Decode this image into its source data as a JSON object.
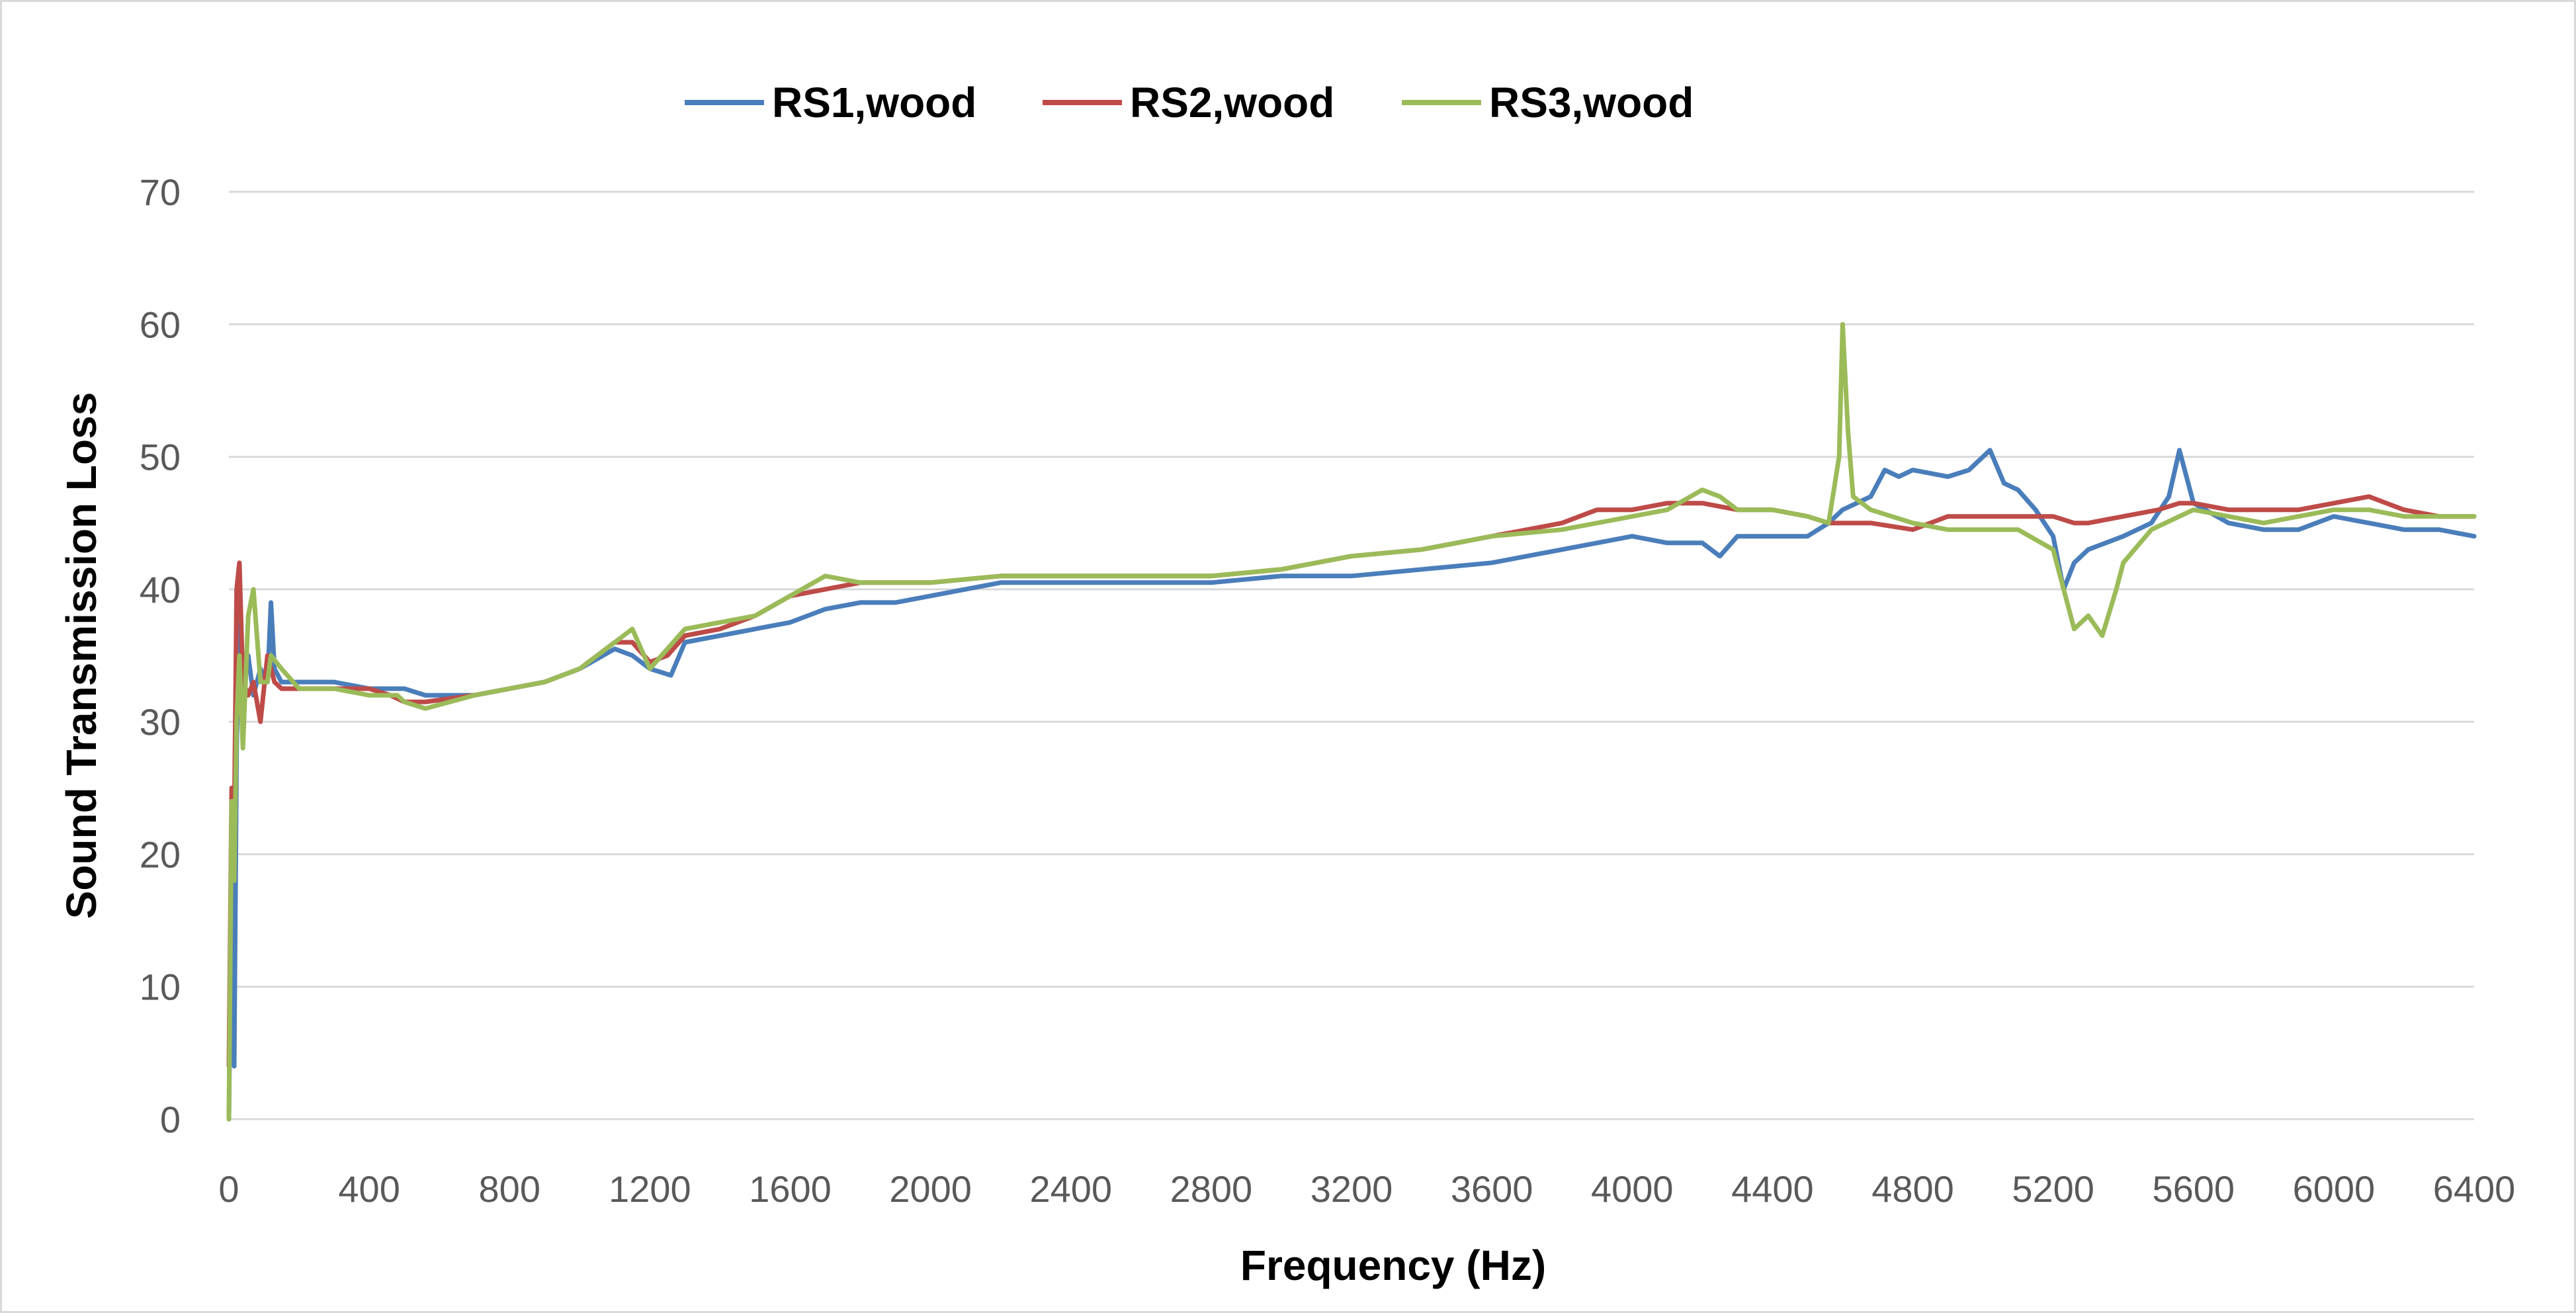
{
  "chart_data": {
    "type": "line",
    "title": "",
    "xlabel": "Frequency (Hz)",
    "ylabel": "Sound Transmission Loss",
    "xlim": [
      0,
      6400
    ],
    "ylim": [
      0,
      70
    ],
    "xticks": [
      0,
      400,
      800,
      1200,
      1600,
      2000,
      2400,
      2800,
      3200,
      3600,
      4000,
      4400,
      4800,
      5200,
      5600,
      6000,
      6400
    ],
    "yticks": [
      0,
      10,
      20,
      30,
      40,
      50,
      60,
      70
    ],
    "grid": "horizontal",
    "legend_position": "top",
    "series": [
      {
        "name": "RS1,wood",
        "color": "#4a7ebb",
        "points": [
          [
            0,
            0
          ],
          [
            8,
            20
          ],
          [
            15,
            4
          ],
          [
            22,
            28
          ],
          [
            30,
            38
          ],
          [
            40,
            33
          ],
          [
            55,
            35
          ],
          [
            70,
            32
          ],
          [
            90,
            34
          ],
          [
            110,
            33
          ],
          [
            120,
            39
          ],
          [
            130,
            34
          ],
          [
            150,
            33
          ],
          [
            200,
            33
          ],
          [
            250,
            33
          ],
          [
            300,
            33
          ],
          [
            400,
            32.5
          ],
          [
            500,
            32.5
          ],
          [
            560,
            32
          ],
          [
            700,
            32
          ],
          [
            800,
            32.5
          ],
          [
            900,
            33
          ],
          [
            1000,
            34
          ],
          [
            1100,
            35.5
          ],
          [
            1150,
            35
          ],
          [
            1200,
            34
          ],
          [
            1260,
            33.5
          ],
          [
            1300,
            36
          ],
          [
            1400,
            36.5
          ],
          [
            1500,
            37
          ],
          [
            1600,
            37.5
          ],
          [
            1700,
            38.5
          ],
          [
            1800,
            39
          ],
          [
            1900,
            39
          ],
          [
            2000,
            39.5
          ],
          [
            2200,
            40.5
          ],
          [
            2400,
            40.5
          ],
          [
            2600,
            40.5
          ],
          [
            2800,
            40.5
          ],
          [
            3000,
            41
          ],
          [
            3200,
            41
          ],
          [
            3400,
            41.5
          ],
          [
            3600,
            42
          ],
          [
            3800,
            43
          ],
          [
            3900,
            43.5
          ],
          [
            4000,
            44
          ],
          [
            4100,
            43.5
          ],
          [
            4200,
            43.5
          ],
          [
            4250,
            42.5
          ],
          [
            4300,
            44
          ],
          [
            4400,
            44
          ],
          [
            4500,
            44
          ],
          [
            4560,
            45
          ],
          [
            4600,
            46
          ],
          [
            4680,
            47
          ],
          [
            4720,
            49
          ],
          [
            4760,
            48.5
          ],
          [
            4800,
            49
          ],
          [
            4900,
            48.5
          ],
          [
            4960,
            49
          ],
          [
            5020,
            50.5
          ],
          [
            5060,
            48
          ],
          [
            5100,
            47.5
          ],
          [
            5150,
            46
          ],
          [
            5200,
            44
          ],
          [
            5230,
            40
          ],
          [
            5260,
            42
          ],
          [
            5300,
            43
          ],
          [
            5400,
            44
          ],
          [
            5480,
            45
          ],
          [
            5530,
            47
          ],
          [
            5560,
            50.5
          ],
          [
            5600,
            46.5
          ],
          [
            5700,
            45
          ],
          [
            5800,
            44.5
          ],
          [
            5900,
            44.5
          ],
          [
            6000,
            45.5
          ],
          [
            6100,
            45
          ],
          [
            6200,
            44.5
          ],
          [
            6300,
            44.5
          ],
          [
            6400,
            44
          ]
        ]
      },
      {
        "name": "RS2,wood",
        "color": "#be4b48",
        "points": [
          [
            0,
            4
          ],
          [
            8,
            25
          ],
          [
            15,
            22
          ],
          [
            22,
            40
          ],
          [
            30,
            42
          ],
          [
            40,
            33
          ],
          [
            55,
            32
          ],
          [
            70,
            33
          ],
          [
            90,
            30
          ],
          [
            110,
            35
          ],
          [
            130,
            33
          ],
          [
            150,
            32.5
          ],
          [
            200,
            32.5
          ],
          [
            300,
            32.5
          ],
          [
            400,
            32.5
          ],
          [
            460,
            32
          ],
          [
            500,
            31.5
          ],
          [
            560,
            31.5
          ],
          [
            700,
            32
          ],
          [
            800,
            32.5
          ],
          [
            900,
            33
          ],
          [
            1000,
            34
          ],
          [
            1100,
            36
          ],
          [
            1150,
            36
          ],
          [
            1200,
            34.5
          ],
          [
            1250,
            35
          ],
          [
            1300,
            36.5
          ],
          [
            1400,
            37
          ],
          [
            1500,
            38
          ],
          [
            1600,
            39.5
          ],
          [
            1700,
            40
          ],
          [
            1800,
            40.5
          ],
          [
            1900,
            40.5
          ],
          [
            2000,
            40.5
          ],
          [
            2200,
            41
          ],
          [
            2400,
            41
          ],
          [
            2600,
            41
          ],
          [
            2800,
            41
          ],
          [
            3000,
            41.5
          ],
          [
            3200,
            42.5
          ],
          [
            3400,
            43
          ],
          [
            3600,
            44
          ],
          [
            3800,
            45
          ],
          [
            3900,
            46
          ],
          [
            4000,
            46
          ],
          [
            4100,
            46.5
          ],
          [
            4200,
            46.5
          ],
          [
            4300,
            46
          ],
          [
            4400,
            46
          ],
          [
            4500,
            45.5
          ],
          [
            4560,
            45
          ],
          [
            4600,
            45
          ],
          [
            4680,
            45
          ],
          [
            4800,
            44.5
          ],
          [
            4900,
            45.5
          ],
          [
            5000,
            45.5
          ],
          [
            5100,
            45.5
          ],
          [
            5200,
            45.5
          ],
          [
            5260,
            45
          ],
          [
            5300,
            45
          ],
          [
            5400,
            45.5
          ],
          [
            5500,
            46
          ],
          [
            5560,
            46.5
          ],
          [
            5600,
            46.5
          ],
          [
            5700,
            46
          ],
          [
            5800,
            46
          ],
          [
            5900,
            46
          ],
          [
            6000,
            46.5
          ],
          [
            6100,
            47
          ],
          [
            6200,
            46
          ],
          [
            6300,
            45.5
          ],
          [
            6400,
            45.5
          ]
        ]
      },
      {
        "name": "RS3,wood",
        "color": "#9bbb59",
        "points": [
          [
            0,
            0
          ],
          [
            8,
            24
          ],
          [
            15,
            18
          ],
          [
            22,
            30
          ],
          [
            30,
            35
          ],
          [
            40,
            28
          ],
          [
            55,
            38
          ],
          [
            70,
            40
          ],
          [
            90,
            33
          ],
          [
            110,
            33
          ],
          [
            120,
            35
          ],
          [
            150,
            34
          ],
          [
            200,
            32.5
          ],
          [
            300,
            32.5
          ],
          [
            400,
            32
          ],
          [
            480,
            32
          ],
          [
            500,
            31.5
          ],
          [
            560,
            31
          ],
          [
            700,
            32
          ],
          [
            800,
            32.5
          ],
          [
            900,
            33
          ],
          [
            1000,
            34
          ],
          [
            1100,
            36
          ],
          [
            1150,
            37
          ],
          [
            1200,
            34
          ],
          [
            1250,
            35.5
          ],
          [
            1300,
            37
          ],
          [
            1400,
            37.5
          ],
          [
            1500,
            38
          ],
          [
            1600,
            39.5
          ],
          [
            1700,
            41
          ],
          [
            1800,
            40.5
          ],
          [
            1900,
            40.5
          ],
          [
            2000,
            40.5
          ],
          [
            2200,
            41
          ],
          [
            2400,
            41
          ],
          [
            2600,
            41
          ],
          [
            2800,
            41
          ],
          [
            3000,
            41.5
          ],
          [
            3200,
            42.5
          ],
          [
            3400,
            43
          ],
          [
            3600,
            44
          ],
          [
            3800,
            44.5
          ],
          [
            3900,
            45
          ],
          [
            4000,
            45.5
          ],
          [
            4100,
            46
          ],
          [
            4200,
            47.5
          ],
          [
            4250,
            47
          ],
          [
            4300,
            46
          ],
          [
            4400,
            46
          ],
          [
            4500,
            45.5
          ],
          [
            4560,
            45
          ],
          [
            4590,
            50
          ],
          [
            4600,
            60
          ],
          [
            4615,
            52
          ],
          [
            4630,
            47
          ],
          [
            4680,
            46
          ],
          [
            4800,
            45
          ],
          [
            4900,
            44.5
          ],
          [
            5000,
            44.5
          ],
          [
            5100,
            44.5
          ],
          [
            5200,
            43
          ],
          [
            5230,
            40
          ],
          [
            5260,
            37
          ],
          [
            5300,
            38
          ],
          [
            5340,
            36.5
          ],
          [
            5380,
            40
          ],
          [
            5400,
            42
          ],
          [
            5480,
            44.5
          ],
          [
            5560,
            45.5
          ],
          [
            5600,
            46
          ],
          [
            5700,
            45.5
          ],
          [
            5800,
            45
          ],
          [
            5900,
            45.5
          ],
          [
            6000,
            46
          ],
          [
            6100,
            46
          ],
          [
            6200,
            45.5
          ],
          [
            6300,
            45.5
          ],
          [
            6400,
            45.5
          ]
        ]
      }
    ]
  }
}
